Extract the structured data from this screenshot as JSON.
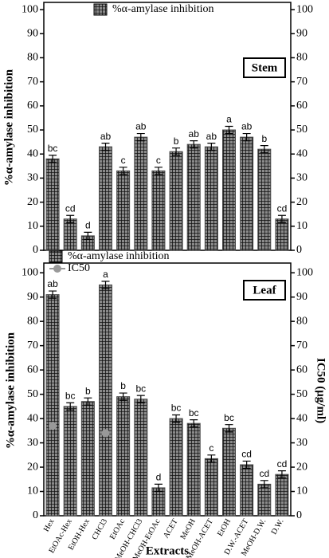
{
  "charts": [
    {
      "type": "bar",
      "panel_label": "Stem",
      "ylabel": "%α-amylase inhibition",
      "series": [
        {
          "name": "%α-amylase inhibition",
          "color": "#444444",
          "values": [
            38,
            13,
            6,
            43,
            33,
            47,
            33,
            41,
            44,
            43,
            50,
            47,
            42,
            13
          ],
          "errors": [
            1.5,
            1.5,
            1.5,
            1.5,
            1.5,
            1.5,
            1.5,
            1.5,
            1.5,
            1.5,
            1.5,
            1.5,
            1.5,
            1.5
          ],
          "letters": [
            "bc",
            "cd",
            "d",
            "ab",
            "c",
            "ab",
            "c",
            "b",
            "ab",
            "ab",
            "a",
            "ab",
            "b",
            "cd"
          ]
        }
      ],
      "ylim": [
        0,
        103
      ],
      "yticks": [
        0,
        10,
        20,
        30,
        40,
        50,
        60,
        70,
        80,
        90,
        100
      ],
      "y2lim": [
        0,
        103
      ],
      "y2ticks": [
        0,
        10,
        20,
        30,
        40,
        50,
        60,
        70,
        80,
        90,
        100
      ]
    },
    {
      "type": "bar",
      "panel_label": "Leaf",
      "ylabel": "%α-amylase inhibition",
      "y2label": "IC50 (μg/ml)",
      "xlabel": "Extracts",
      "categories": [
        "Hex",
        "EtOAc-Hex",
        "EtOH-Hex",
        "CHCl3",
        "EtOAc",
        "MeOH-CHCl3",
        "MeOH-EtOAc",
        "ACET",
        "MeOH",
        "MeOH-ACET",
        "EtOH",
        "D.W.-ACET",
        "MeOH-D.W.",
        "D.W."
      ],
      "series": [
        {
          "name": "%α-amylase inhibition",
          "color": "#444444",
          "values": [
            91,
            45,
            47,
            95,
            49,
            48,
            11.5,
            40,
            38,
            23.5,
            36,
            21,
            13,
            17
          ],
          "errors": [
            1.5,
            1.5,
            1.5,
            1.5,
            1.5,
            1.5,
            1.5,
            1.5,
            1.5,
            1.5,
            1.5,
            1.5,
            1.5,
            1.5
          ],
          "letters": [
            "ab",
            "bc",
            "b",
            "a",
            "b",
            "bc",
            "d",
            "bc",
            "bc",
            "c",
            "bc",
            "cd",
            "cd",
            "cd"
          ]
        },
        {
          "name": "IC50",
          "type": "line",
          "axis": "y2",
          "color": "#999999",
          "values": [
            37,
            null,
            null,
            34,
            null,
            null,
            null,
            null,
            null,
            null,
            null,
            null,
            null,
            null
          ]
        }
      ],
      "ylim": [
        0,
        104
      ],
      "yticks": [
        0,
        10,
        20,
        30,
        40,
        50,
        60,
        70,
        80,
        90,
        100
      ],
      "y2lim": [
        0,
        104
      ],
      "y2ticks": [
        0,
        10,
        20,
        30,
        40,
        50,
        60,
        70,
        80,
        90,
        100
      ]
    }
  ]
}
